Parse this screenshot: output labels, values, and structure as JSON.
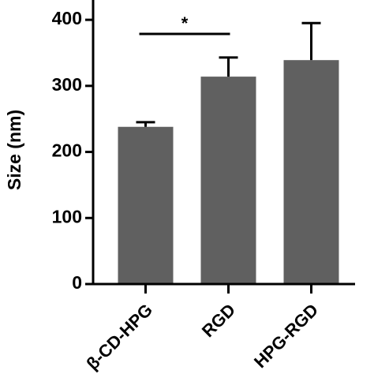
{
  "chart_data": {
    "type": "bar",
    "ylabel": "Size (nm)",
    "categories": [
      "β-CD-HPG",
      "RGD",
      "HPG-RGD"
    ],
    "values": [
      238,
      314,
      339
    ],
    "errors": [
      7,
      29,
      56
    ],
    "color": "#606060",
    "ylim": [
      0,
      430
    ],
    "yticks": [
      0,
      100,
      200,
      300,
      400
    ],
    "annotations": [
      {
        "text": "*",
        "from": 0,
        "to": 1
      }
    ]
  }
}
